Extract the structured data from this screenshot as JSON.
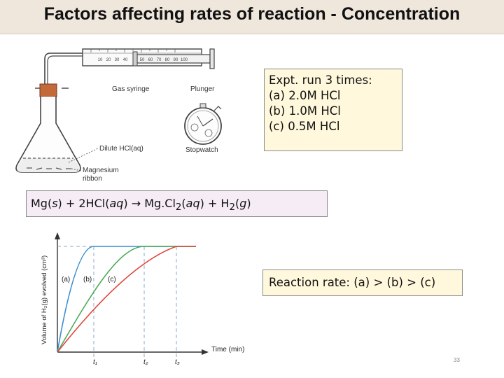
{
  "title": "Factors affecting rates of reaction - Concentration",
  "apparatus": {
    "gas_syringe_label": "Gas syringe",
    "plunger_label": "Plunger",
    "stopwatch_label": "Stopwatch",
    "acid_label": "Dilute HCl(aq)",
    "ribbon_label_line1": "Magnesium",
    "ribbon_label_line2": "ribbon",
    "syringe_scale": [
      "10",
      "20",
      "30",
      "40",
      "50",
      "60",
      "70",
      "80",
      "90",
      "100"
    ]
  },
  "info_box": {
    "lines": [
      "Expt. run 3 times:",
      "(a) 2.0M HCl",
      "(b) 1.0M HCl",
      "(c) 0.5M HCl"
    ]
  },
  "equation": {
    "part1": "Mg(",
    "part2": "s",
    "part3": ") + 2HCl(",
    "part4": "aq",
    "part5": ")",
    "arrow": "→",
    "part6": " Mg.Cl",
    "sub1": "2",
    "part7": "(",
    "part8": "aq",
    "part9": ") + H",
    "sub2": "2",
    "part10": "(",
    "part11": "g",
    "part12": ")"
  },
  "graph": {
    "ylabel": "Volume of H₂(g) evolved (cm³)",
    "xlabel": "Time (min)",
    "curve_labels": [
      "(a)",
      "(b)",
      "(c)"
    ],
    "time_labels": [
      "t₁",
      "t₂",
      "t₃"
    ],
    "colors": {
      "a": "#3a8fd0",
      "b": "#4caa58",
      "c": "#e0483c",
      "dash": "#8aa8c8"
    }
  },
  "rate_box": {
    "text": "Reaction rate:  (a) > (b) > (c)"
  },
  "slide_number": "33"
}
